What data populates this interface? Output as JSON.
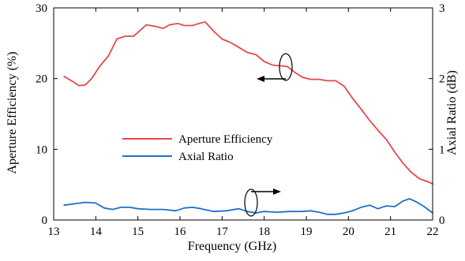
{
  "chart_data": {
    "type": "line",
    "xlabel": "Frequency (GHz)",
    "ylabel_left": "Aperture Efficiency (%)",
    "ylabel_right": "Axial Ratio (dB)",
    "xlim": [
      13,
      22
    ],
    "ylim_left": [
      0,
      30
    ],
    "ylim_right": [
      0,
      3
    ],
    "x_ticks": [
      "13",
      "14",
      "15",
      "16",
      "17",
      "18",
      "19",
      "20",
      "21",
      "22"
    ],
    "y_ticks_left": [
      "0",
      "10",
      "20",
      "30"
    ],
    "y_ticks_right": [
      "0",
      "1",
      "2",
      "3"
    ],
    "grid": false,
    "legend_position": "center-left",
    "series": [
      {
        "name": "Aperture Efficiency",
        "axis": "left",
        "color": "#e8474c",
        "points": [
          [
            13.25,
            20.3
          ],
          [
            13.45,
            19.6
          ],
          [
            13.6,
            19.0
          ],
          [
            13.75,
            19.1
          ],
          [
            13.9,
            20.0
          ],
          [
            14.1,
            21.8
          ],
          [
            14.3,
            23.2
          ],
          [
            14.5,
            25.6
          ],
          [
            14.7,
            26.0
          ],
          [
            14.9,
            26.0
          ],
          [
            15.05,
            26.8
          ],
          [
            15.2,
            27.6
          ],
          [
            15.4,
            27.4
          ],
          [
            15.6,
            27.1
          ],
          [
            15.75,
            27.6
          ],
          [
            15.95,
            27.8
          ],
          [
            16.1,
            27.5
          ],
          [
            16.3,
            27.5
          ],
          [
            16.45,
            27.8
          ],
          [
            16.6,
            28.0
          ],
          [
            16.8,
            26.7
          ],
          [
            17.0,
            25.6
          ],
          [
            17.2,
            25.1
          ],
          [
            17.4,
            24.4
          ],
          [
            17.6,
            23.7
          ],
          [
            17.8,
            23.4
          ],
          [
            18.0,
            22.4
          ],
          [
            18.2,
            21.9
          ],
          [
            18.4,
            21.8
          ],
          [
            18.55,
            21.7
          ],
          [
            18.7,
            21.0
          ],
          [
            18.9,
            20.2
          ],
          [
            19.1,
            19.9
          ],
          [
            19.3,
            19.9
          ],
          [
            19.5,
            19.7
          ],
          [
            19.7,
            19.7
          ],
          [
            19.9,
            18.9
          ],
          [
            20.1,
            17.2
          ],
          [
            20.3,
            15.7
          ],
          [
            20.5,
            14.1
          ],
          [
            20.7,
            12.7
          ],
          [
            20.9,
            11.4
          ],
          [
            21.1,
            9.6
          ],
          [
            21.3,
            8.0
          ],
          [
            21.5,
            6.7
          ],
          [
            21.7,
            5.8
          ],
          [
            21.9,
            5.4
          ],
          [
            22.0,
            5.1
          ]
        ]
      },
      {
        "name": "Axial Ratio",
        "axis": "right",
        "color": "#1f6fc8",
        "points": [
          [
            13.25,
            0.21
          ],
          [
            13.5,
            0.23
          ],
          [
            13.75,
            0.25
          ],
          [
            14.0,
            0.24
          ],
          [
            14.2,
            0.17
          ],
          [
            14.4,
            0.15
          ],
          [
            14.6,
            0.18
          ],
          [
            14.8,
            0.18
          ],
          [
            15.0,
            0.16
          ],
          [
            15.3,
            0.15
          ],
          [
            15.6,
            0.15
          ],
          [
            15.9,
            0.13
          ],
          [
            16.1,
            0.17
          ],
          [
            16.3,
            0.18
          ],
          [
            16.5,
            0.16
          ],
          [
            16.8,
            0.12
          ],
          [
            17.1,
            0.13
          ],
          [
            17.4,
            0.16
          ],
          [
            17.6,
            0.12
          ],
          [
            17.8,
            0.1
          ],
          [
            18.0,
            0.12
          ],
          [
            18.3,
            0.11
          ],
          [
            18.6,
            0.12
          ],
          [
            18.9,
            0.12
          ],
          [
            19.1,
            0.13
          ],
          [
            19.3,
            0.11
          ],
          [
            19.5,
            0.08
          ],
          [
            19.7,
            0.08
          ],
          [
            19.9,
            0.1
          ],
          [
            20.1,
            0.13
          ],
          [
            20.3,
            0.18
          ],
          [
            20.5,
            0.21
          ],
          [
            20.7,
            0.16
          ],
          [
            20.9,
            0.2
          ],
          [
            21.1,
            0.19
          ],
          [
            21.3,
            0.27
          ],
          [
            21.45,
            0.3
          ],
          [
            21.6,
            0.26
          ],
          [
            21.8,
            0.19
          ],
          [
            22.0,
            0.1
          ]
        ]
      }
    ]
  }
}
